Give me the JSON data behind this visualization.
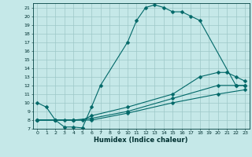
{
  "title": "",
  "xlabel": "Humidex (Indice chaleur)",
  "bg_color": "#c5e8e8",
  "grid_color": "#9dc8c8",
  "line_color": "#006868",
  "xlim": [
    -0.5,
    23.5
  ],
  "ylim": [
    7,
    21.5
  ],
  "xticks": [
    0,
    1,
    2,
    3,
    4,
    5,
    6,
    7,
    8,
    9,
    10,
    11,
    12,
    13,
    14,
    15,
    16,
    17,
    18,
    19,
    20,
    21,
    22,
    23
  ],
  "yticks": [
    7,
    8,
    9,
    10,
    11,
    12,
    13,
    14,
    15,
    16,
    17,
    18,
    19,
    20,
    21
  ],
  "line1_x": [
    0,
    1,
    2,
    3,
    4,
    5,
    6,
    7,
    10,
    11,
    12,
    13,
    14,
    15,
    16,
    17,
    18,
    22,
    23
  ],
  "line1_y": [
    10,
    9.5,
    8.0,
    7.2,
    7.2,
    7.1,
    9.5,
    12.0,
    17.0,
    19.5,
    21.0,
    21.3,
    21.0,
    20.5,
    20.5,
    20.0,
    19.5,
    12.0,
    12.0
  ],
  "line2_x": [
    0,
    2,
    3,
    4,
    5,
    6,
    10,
    15,
    18,
    20,
    21,
    22,
    23
  ],
  "line2_y": [
    8,
    8.0,
    8.0,
    8.0,
    8.0,
    8.5,
    9.5,
    11.0,
    13.0,
    13.5,
    13.5,
    13.0,
    12.5
  ],
  "line3_x": [
    0,
    2,
    4,
    6,
    10,
    15,
    20,
    22,
    23
  ],
  "line3_y": [
    8,
    8.0,
    8.0,
    8.2,
    9.0,
    10.5,
    12.0,
    12.0,
    12.0
  ],
  "line4_x": [
    0,
    2,
    4,
    6,
    10,
    15,
    20,
    23
  ],
  "line4_y": [
    8,
    8.0,
    8.0,
    8.0,
    8.8,
    10.0,
    11.0,
    11.5
  ]
}
